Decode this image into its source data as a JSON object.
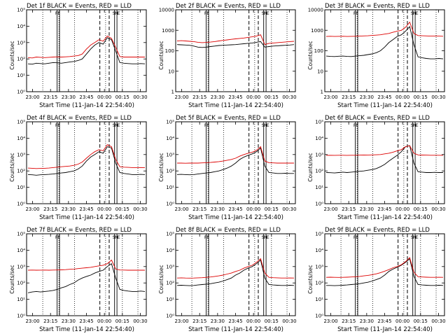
{
  "colors": {
    "events": "#000000",
    "lld": "#dd0000"
  },
  "chart_data": [
    {
      "type": "line",
      "title": "Det 1f BLACK = Events, RED = LLD",
      "xlabel": "Start Time (11-Jan-14 22:54:40)",
      "ylabel": "Counts/sec",
      "yscale": "log",
      "ylim": [
        1,
        100000
      ],
      "ytick_labels": [
        "10⁰",
        "10¹",
        "10²",
        "10³",
        "10⁴",
        "10⁵"
      ],
      "xtick_labels": [
        "23:00",
        "23:15",
        "23:30",
        "23:45",
        "00:00",
        "00:15",
        "00:30"
      ],
      "series": [
        {
          "name": "Events",
          "color": "#000000",
          "values": [
            50,
            48,
            55,
            52,
            50,
            55,
            60,
            58,
            55,
            60,
            65,
            70,
            80,
            100,
            200,
            400,
            700,
            1000,
            800,
            2000,
            1500,
            300,
            60,
            55,
            52,
            50,
            50,
            52,
            50
          ]
        },
        {
          "name": "LLD",
          "color": "#dd0000",
          "values": [
            120,
            115,
            130,
            125,
            120,
            125,
            130,
            135,
            130,
            135,
            140,
            150,
            160,
            200,
            400,
            700,
            1000,
            1500,
            1200,
            2500,
            1800,
            500,
            140,
            130,
            130,
            130,
            130,
            132,
            130
          ]
        }
      ],
      "markers": [
        "F",
        "F",
        "S",
        "N",
        "E"
      ]
    },
    {
      "type": "line",
      "title": "Det 2f BLACK = Events, RED = LLD",
      "xlabel": "Start Time (11-Jan-14 22:54:40)",
      "ylabel": "Counts/sec",
      "yscale": "log",
      "ylim": [
        1,
        10000
      ],
      "ytick_labels": [
        "1",
        "10",
        "100",
        "1000",
        "10000"
      ],
      "xtick_labels": [
        "23:00",
        "23:15",
        "23:30",
        "23:45",
        "00:00",
        "00:15",
        "00:30"
      ],
      "series": [
        {
          "name": "Events",
          "color": "#000000",
          "values": [
            200,
            195,
            190,
            185,
            170,
            150,
            145,
            150,
            160,
            170,
            180,
            185,
            190,
            195,
            200,
            210,
            220,
            230,
            240,
            260,
            280,
            150,
            160,
            170,
            175,
            180,
            185,
            190,
            200
          ]
        },
        {
          "name": "LLD",
          "color": "#dd0000",
          "values": [
            300,
            310,
            300,
            290,
            280,
            260,
            250,
            255,
            265,
            280,
            300,
            320,
            340,
            360,
            380,
            400,
            420,
            450,
            480,
            520,
            600,
            200,
            230,
            240,
            250,
            260,
            270,
            280,
            290
          ]
        }
      ],
      "markers": [
        "F",
        "F",
        "S",
        "N",
        "E"
      ]
    },
    {
      "type": "line",
      "title": "Det 3f BLACK = Events, RED = LLD",
      "xlabel": "Start Time (11-Jan-14 22:54:40)",
      "ylabel": "Counts/sec",
      "yscale": "log",
      "ylim": [
        1,
        10000
      ],
      "ytick_labels": [
        "1",
        "10",
        "100",
        "1000",
        "10000"
      ],
      "xtick_labels": [
        "23:00",
        "23:15",
        "23:30",
        "23:45",
        "00:00",
        "00:15",
        "00:30"
      ],
      "series": [
        {
          "name": "Events",
          "color": "#000000",
          "values": [
            55,
            53,
            52,
            54,
            55,
            53,
            52,
            55,
            57,
            60,
            65,
            70,
            80,
            100,
            150,
            250,
            350,
            500,
            600,
            900,
            1500,
            200,
            50,
            45,
            42,
            40,
            40,
            42,
            40
          ]
        },
        {
          "name": "LLD",
          "color": "#dd0000",
          "values": [
            500,
            510,
            500,
            505,
            510,
            500,
            505,
            510,
            520,
            530,
            540,
            560,
            580,
            600,
            650,
            700,
            800,
            900,
            1000,
            1400,
            2500,
            700,
            550,
            540,
            530,
            520,
            520,
            520,
            510
          ]
        }
      ],
      "markers": [
        "F",
        "F",
        "S",
        "N",
        "E"
      ]
    },
    {
      "type": "line",
      "title": "Det 4f BLACK = Events, RED = LLD",
      "xlabel": "Start Time (11-Jan-14 22:54:40)",
      "ylabel": "Counts/sec",
      "yscale": "log",
      "ylim": [
        1,
        100000
      ],
      "ytick_labels": [
        "10⁰",
        "10¹",
        "10²",
        "10³",
        "10⁴",
        "10⁵"
      ],
      "xtick_labels": [
        "23:00",
        "23:15",
        "23:30",
        "23:45",
        "00:00",
        "00:15",
        "00:30"
      ],
      "series": [
        {
          "name": "Events",
          "color": "#000000",
          "values": [
            60,
            58,
            55,
            58,
            60,
            62,
            65,
            70,
            75,
            80,
            90,
            100,
            130,
            200,
            400,
            700,
            1000,
            1500,
            1200,
            3000,
            2500,
            300,
            80,
            70,
            65,
            60,
            60,
            62,
            60
          ]
        },
        {
          "name": "LLD",
          "color": "#dd0000",
          "values": [
            150,
            145,
            140,
            142,
            145,
            150,
            160,
            170,
            180,
            190,
            200,
            220,
            260,
            350,
            600,
            1000,
            1500,
            2000,
            1700,
            4000,
            3000,
            500,
            180,
            170,
            165,
            160,
            160,
            162,
            160
          ]
        }
      ],
      "markers": [
        "F",
        "F",
        "S",
        "N",
        "E"
      ]
    },
    {
      "type": "line",
      "title": "Det 5f BLACK = Events, RED = LLD",
      "xlabel": "Start Time (11-Jan-14 22:54:40)",
      "ylabel": "Counts/sec",
      "yscale": "log",
      "ylim": [
        1,
        100000
      ],
      "ytick_labels": [
        "10⁰",
        "10¹",
        "10²",
        "10³",
        "10⁴",
        "10⁵"
      ],
      "xtick_labels": [
        "23:00",
        "23:15",
        "23:30",
        "23:45",
        "00:00",
        "00:15",
        "00:30"
      ],
      "series": [
        {
          "name": "Events",
          "color": "#000000",
          "values": [
            60,
            62,
            60,
            58,
            60,
            65,
            70,
            75,
            80,
            90,
            100,
            120,
            150,
            200,
            300,
            500,
            700,
            900,
            1100,
            1500,
            2500,
            200,
            80,
            75,
            70,
            70,
            72,
            70,
            70
          ]
        },
        {
          "name": "LLD",
          "color": "#dd0000",
          "values": [
            300,
            300,
            295,
            300,
            305,
            300,
            310,
            320,
            330,
            350,
            370,
            400,
            450,
            500,
            600,
            800,
            1000,
            1200,
            1400,
            1800,
            3000,
            400,
            320,
            310,
            300,
            300,
            300,
            300,
            300
          ]
        }
      ],
      "markers": [
        "F",
        "F",
        "S",
        "N",
        "E"
      ]
    },
    {
      "type": "line",
      "title": "Det 6f BLACK = Events, RED = LLD",
      "xlabel": "Start Time (11-Jan-14 22:54:40)",
      "ylabel": "Counts/sec",
      "yscale": "log",
      "ylim": [
        1,
        100000
      ],
      "ytick_labels": [
        "10⁰",
        "10¹",
        "10²",
        "10³",
        "10⁴",
        "10⁵"
      ],
      "xtick_labels": [
        "23:00",
        "23:15",
        "23:30",
        "23:45",
        "00:00",
        "00:15",
        "00:30"
      ],
      "series": [
        {
          "name": "Events",
          "color": "#000000",
          "values": [
            80,
            78,
            75,
            80,
            85,
            80,
            85,
            90,
            95,
            100,
            110,
            120,
            140,
            180,
            250,
            400,
            600,
            900,
            1500,
            3000,
            3500,
            300,
            90,
            85,
            80,
            80,
            82,
            80,
            80
          ]
        },
        {
          "name": "LLD",
          "color": "#dd0000",
          "values": [
            900,
            910,
            900,
            905,
            910,
            900,
            905,
            910,
            920,
            930,
            940,
            950,
            970,
            1000,
            1100,
            1200,
            1400,
            1700,
            2000,
            3000,
            3500,
            1200,
            950,
            930,
            920,
            910,
            910,
            905,
            900
          ]
        }
      ],
      "markers": [
        "F",
        "F",
        "S",
        "N",
        "E"
      ]
    },
    {
      "type": "line",
      "title": "Det 7f BLACK = Events, RED = LLD",
      "xlabel": "Start Time (11-Jan-14 22:54:40)",
      "ylabel": "Counts/sec",
      "yscale": "log",
      "ylim": [
        1,
        100000
      ],
      "ytick_labels": [
        "10⁰",
        "10¹",
        "10²",
        "10³",
        "10⁴",
        "10⁵"
      ],
      "xtick_labels": [
        "23:00",
        "23:15",
        "23:30",
        "23:45",
        "00:00",
        "00:15",
        "00:30"
      ],
      "series": [
        {
          "name": "Events",
          "color": "#000000",
          "values": [
            25,
            28,
            30,
            28,
            30,
            32,
            35,
            40,
            50,
            60,
            80,
            100,
            150,
            200,
            250,
            300,
            400,
            500,
            600,
            1000,
            1500,
            200,
            40,
            35,
            32,
            30,
            30,
            32,
            30
          ]
        },
        {
          "name": "LLD",
          "color": "#dd0000",
          "values": [
            600,
            610,
            600,
            605,
            610,
            600,
            610,
            620,
            630,
            650,
            680,
            700,
            750,
            800,
            850,
            900,
            1000,
            1100,
            1200,
            1500,
            2500,
            700,
            620,
            610,
            600,
            600,
            600,
            600,
            600
          ]
        }
      ],
      "markers": [
        "F",
        "F",
        "S",
        "N",
        "E"
      ]
    },
    {
      "type": "line",
      "title": "Det 8f BLACK = Events, RED = LLD",
      "xlabel": "Start Time (11-Jan-14 22:54:40)",
      "ylabel": "Counts/sec",
      "yscale": "log",
      "ylim": [
        1,
        100000
      ],
      "ytick_labels": [
        "10⁰",
        "10¹",
        "10²",
        "10³",
        "10⁴",
        "10⁵"
      ],
      "xtick_labels": [
        "23:00",
        "23:15",
        "23:30",
        "23:45",
        "00:00",
        "00:15",
        "00:30"
      ],
      "series": [
        {
          "name": "Events",
          "color": "#000000",
          "values": [
            70,
            72,
            70,
            68,
            70,
            75,
            80,
            85,
            90,
            100,
            110,
            130,
            160,
            200,
            300,
            400,
            600,
            800,
            1000,
            1500,
            2500,
            200,
            80,
            75,
            72,
            70,
            70,
            72,
            70
          ]
        },
        {
          "name": "LLD",
          "color": "#dd0000",
          "values": [
            200,
            205,
            200,
            198,
            200,
            205,
            210,
            220,
            230,
            250,
            270,
            300,
            350,
            400,
            500,
            600,
            800,
            1000,
            1200,
            1800,
            3000,
            400,
            220,
            210,
            205,
            200,
            200,
            202,
            200
          ]
        }
      ],
      "markers": [
        "F",
        "F",
        "S",
        "N",
        "E"
      ]
    },
    {
      "type": "line",
      "title": "Det 9f BLACK = Events, RED = LLD",
      "xlabel": "Start Time (11-Jan-14 22:54:40)",
      "ylabel": "Counts/sec",
      "yscale": "log",
      "ylim": [
        1,
        100000
      ],
      "ytick_labels": [
        "10⁰",
        "10¹",
        "10²",
        "10³",
        "10⁴",
        "10⁵"
      ],
      "xtick_labels": [
        "23:00",
        "23:15",
        "23:30",
        "23:45",
        "00:00",
        "00:15",
        "00:30"
      ],
      "series": [
        {
          "name": "Events",
          "color": "#000000",
          "values": [
            70,
            70,
            68,
            70,
            72,
            75,
            80,
            85,
            90,
            100,
            110,
            130,
            160,
            200,
            300,
            500,
            700,
            900,
            1200,
            1800,
            3000,
            250,
            80,
            75,
            72,
            70,
            70,
            72,
            70
          ]
        },
        {
          "name": "LLD",
          "color": "#dd0000",
          "values": [
            220,
            225,
            220,
            218,
            220,
            225,
            230,
            240,
            250,
            270,
            290,
            320,
            360,
            420,
            520,
            650,
            850,
            1000,
            1300,
            2000,
            3500,
            450,
            240,
            230,
            225,
            220,
            220,
            222,
            220
          ]
        }
      ],
      "markers": [
        "F",
        "F",
        "S",
        "N",
        "E"
      ]
    }
  ]
}
